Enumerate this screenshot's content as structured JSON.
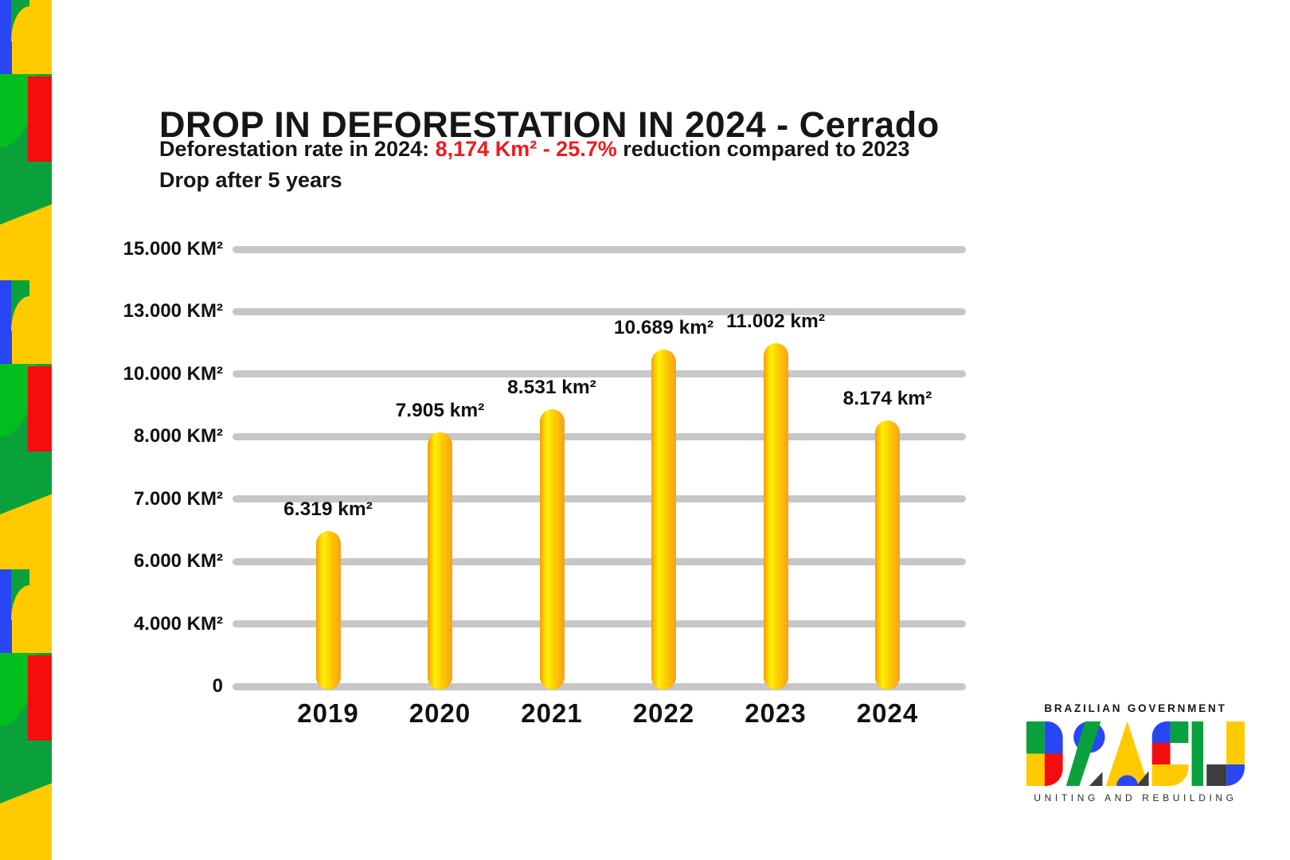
{
  "header": {
    "title": "DROP IN DEFORESTATION IN 2024 - Cerrado",
    "subtitle_prefix": "Deforestation rate in 2024: ",
    "subtitle_highlight": "8,174 Km² - 25.7%",
    "subtitle_suffix": " reduction compared to 2023",
    "subtitle_line2": "Drop after 5 years"
  },
  "chart_data": {
    "type": "bar",
    "title": "DROP IN DEFORESTATION IN 2024 - Cerrado",
    "categories": [
      "2019",
      "2020",
      "2021",
      "2022",
      "2023",
      "2024"
    ],
    "values": [
      6319,
      7905,
      8531,
      10689,
      11002,
      8174
    ],
    "bar_labels": [
      "6.319 km²",
      "7.905 km²",
      "8.531 km²",
      "10.689 km²",
      "11.002 km²",
      "8.174 km²"
    ],
    "unit": "km²",
    "y_ticks": [
      {
        "label": "15.000 KM²",
        "value": 15000
      },
      {
        "label": "13.000 KM²",
        "value": 13000
      },
      {
        "label": "10.000 KM²",
        "value": 10000
      },
      {
        "label": "8.000 KM²",
        "value": 8000
      },
      {
        "label": "7.000 KM²",
        "value": 7000
      },
      {
        "label": "6.000 KM²",
        "value": 6000
      },
      {
        "label": "4.000 KM²",
        "value": 4000
      },
      {
        "label": "0",
        "value": 0
      }
    ],
    "ylim": [
      0,
      15000
    ],
    "grid": true,
    "legend": false,
    "axis_note": "y gridlines evenly spaced but non-linear in value",
    "bar_gradient": [
      "#F2A007",
      "#FFF100",
      "#F7A11B"
    ],
    "gridline_color": "#C7C7C7"
  },
  "logo": {
    "government": "BRAZILIAN GOVERNMENT",
    "wordmark": "BRASIL",
    "tagline": "UNITING AND REBUILDING"
  },
  "colors": {
    "text": "#1A1A1A",
    "highlight_red": "#EE1B1E",
    "gridline": "#C7C7C7",
    "strip_yellow": "#FFCB00",
    "strip_blue": "#2946F5",
    "strip_green": "#0AA13C",
    "strip_green_bright": "#00BE1E",
    "strip_red": "#F40D0D",
    "logo_dark": "#3E3E3E"
  }
}
